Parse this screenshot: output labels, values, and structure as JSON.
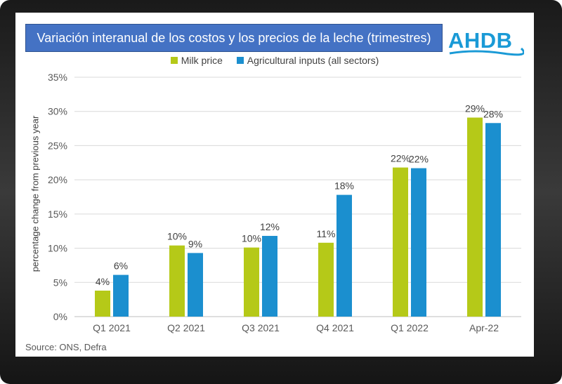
{
  "header": {
    "title": "Variación interanual de los costos y los precios de la leche (trimestres)",
    "logo_text": "AHDB"
  },
  "footer": {
    "source": "Source: ONS, Defra"
  },
  "colors": {
    "milk": "#b5c918",
    "inputs": "#1b8fcf",
    "grid": "#d9d9d9",
    "title_bg": "#4472c4"
  },
  "chart_data": {
    "type": "bar",
    "title": "Variación interanual de los costos y los precios de la leche (trimestres)",
    "xlabel": "",
    "ylabel": "percentage change from previous year",
    "ylim": [
      0,
      35
    ],
    "yticks": [
      0,
      5,
      10,
      15,
      20,
      25,
      30,
      35
    ],
    "ytick_labels": [
      "0%",
      "5%",
      "10%",
      "15%",
      "20%",
      "25%",
      "30%",
      "35%"
    ],
    "grid": true,
    "legend_position": "top-center",
    "categories": [
      "Q1 2021",
      "Q2 2021",
      "Q3 2021",
      "Q4 2021",
      "Q1 2022",
      "Apr-22"
    ],
    "series": [
      {
        "name": "Milk price",
        "values": [
          3.8,
          10.4,
          10.1,
          10.8,
          21.8,
          29.1
        ],
        "labels": [
          "4%",
          "10%",
          "10%",
          "11%",
          "22%",
          "29%"
        ]
      },
      {
        "name": "Agricultural inputs (all sectors)",
        "values": [
          6.1,
          9.3,
          11.8,
          17.8,
          21.7,
          28.3
        ],
        "labels": [
          "6%",
          "9%",
          "12%",
          "18%",
          "22%",
          "28%"
        ]
      }
    ]
  }
}
